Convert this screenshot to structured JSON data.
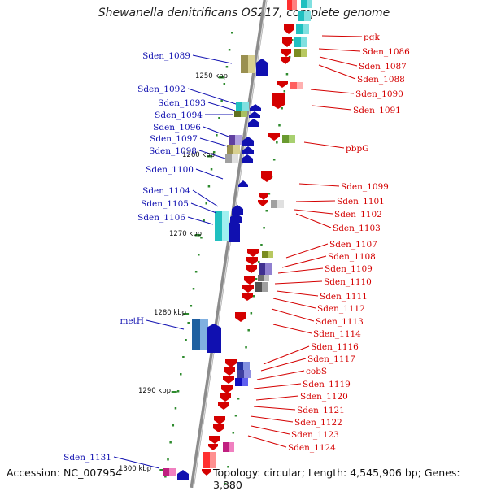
{
  "title": "Shewanella denitrificans OS217, complete genome",
  "footer": {
    "accession": "Accession: NC_007954",
    "info": "Topology: circular; Length: 4,545,906 bp; Genes: 3,880"
  },
  "colors": {
    "backbone": "#8c8c8c",
    "plus_strand": "#1010b0",
    "minus_strand": "#d40000",
    "tick": "#2e8b2e"
  },
  "ruler_labels": [
    "1250 kbp",
    "1260 kbp",
    "1270 kbp",
    "1280 kbp",
    "1290 kbp",
    "1300 kbp"
  ],
  "left_labels": [
    "Sden_1089",
    "Sden_1092",
    "Sden_1093",
    "Sden_1094",
    "Sden_1096",
    "Sden_1097",
    "Sden_1098",
    "Sden_1100",
    "Sden_1104",
    "Sden_1105",
    "Sden_1106",
    "metH",
    "Sden_1131"
  ],
  "right_labels": [
    "pgk",
    "Sden_1086",
    "Sden_1087",
    "Sden_1088",
    "Sden_1090",
    "Sden_1091",
    "pbpG",
    "Sden_1099",
    "Sden_1101",
    "Sden_1102",
    "Sden_1103",
    "Sden_1107",
    "Sden_1108",
    "Sden_1109",
    "Sden_1110",
    "Sden_1111",
    "Sden_1112",
    "Sden_1113",
    "Sden_1114",
    "Sden_1116",
    "Sden_1117",
    "cobS",
    "Sden_1119",
    "Sden_1120",
    "Sden_1121",
    "Sden_1122",
    "Sden_1123",
    "Sden_1124"
  ]
}
